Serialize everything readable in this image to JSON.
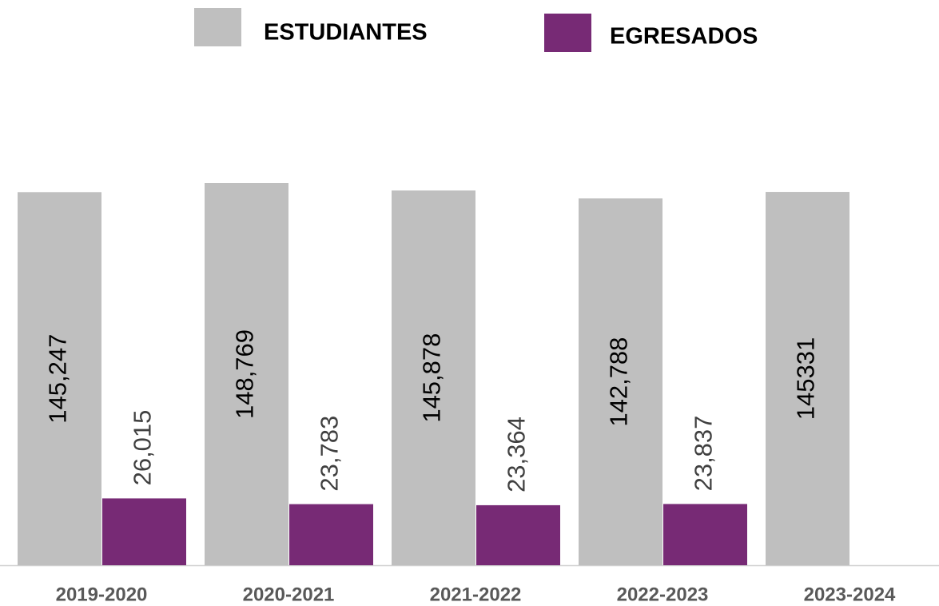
{
  "chart_data": {
    "type": "bar",
    "categories": [
      "2019-2020",
      "2020-2021",
      "2021-2022",
      "2022-2023",
      "2023-2024"
    ],
    "series": [
      {
        "name": "ESTUDIANTES",
        "color": "#bfbfbf",
        "values": [
          145247,
          148769,
          145878,
          142788,
          145331
        ],
        "value_labels": [
          "145,247",
          "148,769",
          "145,878",
          "142,788",
          "145331"
        ]
      },
      {
        "name": "EGRESADOS",
        "color": "#772a75",
        "values": [
          26015,
          23783,
          23364,
          23837,
          null
        ],
        "value_labels": [
          "26,015",
          "23,783",
          "23,364",
          "23,837",
          null
        ]
      }
    ]
  }
}
